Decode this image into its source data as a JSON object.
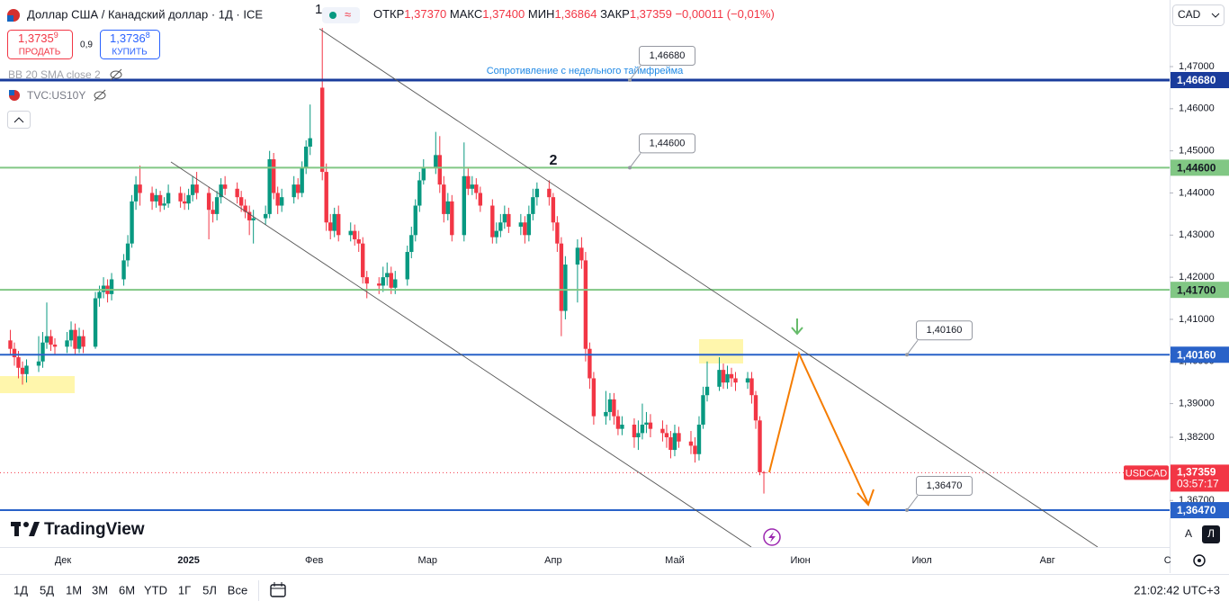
{
  "header": {
    "symbol": "Доллар США / Канадский доллар · 1Д · ICE",
    "open_label": "ОТКР",
    "open": "1,37370",
    "high_label": "МАКС",
    "high": "1,37400",
    "low_label": "МИН",
    "low": "1,36864",
    "close_label": "ЗАКР",
    "close": "1,37359",
    "change": "−0,00011 (−0,01%)"
  },
  "trade": {
    "sell_price": "1,3735",
    "sell_pip": "9",
    "sell": "ПРОДАТЬ",
    "spread": "0,9",
    "buy_price": "1,3736",
    "buy_pip": "8",
    "buy": "КУПИТЬ"
  },
  "indicators": [
    "BB 20 SMA close 2",
    "TVC:US10Y"
  ],
  "currency": "CAD",
  "logo": "TradingView",
  "toolbar": {
    "ranges": [
      "1Д",
      "5Д",
      "1М",
      "3М",
      "6М",
      "YTD",
      "1Г",
      "5Л",
      "Все"
    ],
    "clock": "21:02:42 UTC+3",
    "auto": "A",
    "log": "Л"
  },
  "chart_data": {
    "type": "candlestick",
    "symbol_tag": "USDCAD",
    "last_price": {
      "value": 1.37359,
      "label": "1,37359"
    },
    "countdown": "03:57:17",
    "annotations": [
      "1",
      "2",
      "Сопротивление с недельного таймфрейма"
    ],
    "grid": false,
    "up_color": "#089981",
    "down_color": "#f23645",
    "xlim": [
      -15.55,
      273.15
    ],
    "xticks": [
      {
        "value": 0,
        "label": "Дек"
      },
      {
        "value": 31,
        "label": "2025"
      },
      {
        "value": 62,
        "label": "Фев"
      },
      {
        "value": 90,
        "label": "Мар"
      },
      {
        "value": 121,
        "label": "Апр"
      },
      {
        "value": 151,
        "label": "Май"
      },
      {
        "value": 182,
        "label": "Июн"
      },
      {
        "value": 212,
        "label": "Июл"
      },
      {
        "value": 243,
        "label": "Авг"
      },
      {
        "value": 274,
        "label": "Сен"
      }
    ],
    "ylim": [
      1.35595,
      1.48581
    ],
    "yticks": [
      {
        "value": 1.47,
        "label": "1,47000"
      },
      {
        "value": 1.46,
        "label": "1,46000"
      },
      {
        "value": 1.45,
        "label": "1,45000"
      },
      {
        "value": 1.44,
        "label": "1,44000"
      },
      {
        "value": 1.43,
        "label": "1,43000"
      },
      {
        "value": 1.42,
        "label": "1,42000"
      },
      {
        "value": 1.41,
        "label": "1,41000"
      },
      {
        "value": 1.4,
        "label": "1,40000"
      },
      {
        "value": 1.39,
        "label": "1,39000"
      },
      {
        "value": 1.382,
        "label": "1,38200"
      },
      {
        "value": 1.367,
        "label": "1,36700"
      }
    ],
    "levels": [
      {
        "value": 1.4668,
        "label": "1,46680",
        "color": "#1a3c9c",
        "text_color": "#ffffff",
        "line_width": 3
      },
      {
        "value": 1.446,
        "label": "1,44600",
        "color": "#81c784",
        "text_color": "#131722",
        "line_width": 2
      },
      {
        "value": 1.417,
        "label": "1,41700",
        "color": "#81c784",
        "text_color": "#131722",
        "line_width": 2
      },
      {
        "value": 1.4016,
        "label": "1,40160",
        "color": "#2962c8",
        "text_color": "#ffffff",
        "line_width": 2
      },
      {
        "value": 1.3647,
        "label": "1,36470",
        "color": "#2962c8",
        "text_color": "#ffffff",
        "line_width": 2
      }
    ],
    "candles": {
      "x": [
        -13,
        -12,
        -11,
        -10,
        -9,
        -6,
        -5,
        -4,
        -3,
        -2,
        1,
        2,
        3,
        4,
        5,
        8,
        9,
        10,
        11,
        12,
        15,
        16,
        17,
        18,
        19,
        22,
        23,
        24,
        25,
        26,
        29,
        30,
        31,
        32,
        33,
        36,
        37,
        38,
        39,
        40,
        43,
        44,
        45,
        46,
        47,
        50,
        51,
        52,
        53,
        54,
        57,
        58,
        59,
        60,
        61,
        64,
        65,
        66,
        67,
        68,
        71,
        72,
        73,
        74,
        75,
        78,
        79,
        80,
        81,
        82,
        85,
        86,
        87,
        88,
        89,
        92,
        93,
        94,
        95,
        96,
        99,
        100,
        101,
        102,
        103,
        106,
        107,
        108,
        109,
        110,
        113,
        114,
        115,
        116,
        117,
        120,
        121,
        122,
        123,
        124,
        127,
        128,
        129,
        130,
        131,
        134,
        135,
        136,
        137,
        138,
        141,
        142,
        143,
        144,
        145,
        148,
        149,
        150,
        151,
        152,
        155,
        156,
        157,
        158,
        159,
        162,
        163,
        164,
        165,
        166,
        169,
        170,
        171,
        172,
        173
      ],
      "open": [
        1.405,
        1.403,
        1.401,
        1.3985,
        1.397,
        1.399,
        1.4,
        1.4045,
        1.406,
        1.404,
        1.4035,
        1.405,
        1.4075,
        1.403,
        1.406,
        1.4035,
        1.415,
        1.4165,
        1.418,
        1.416,
        1.4195,
        1.424,
        1.428,
        1.438,
        1.442,
        1.44,
        1.438,
        1.4395,
        1.437,
        1.4375,
        1.44,
        1.438,
        1.4375,
        1.4395,
        1.442,
        1.44,
        1.436,
        1.435,
        1.439,
        1.442,
        1.441,
        1.439,
        1.437,
        1.4355,
        1.4335,
        1.434,
        1.435,
        1.448,
        1.44,
        1.437,
        1.439,
        1.442,
        1.44,
        1.446,
        1.451,
        1.465,
        1.445,
        1.433,
        1.431,
        1.435,
        1.43,
        1.431,
        1.429,
        1.428,
        1.42,
        1.4185,
        1.418,
        1.42,
        1.421,
        1.4175,
        1.4195,
        1.426,
        1.43,
        1.437,
        1.443,
        1.446,
        1.449,
        1.442,
        1.435,
        1.438,
        1.43,
        1.444,
        1.441,
        1.442,
        1.44,
        1.437,
        1.4295,
        1.431,
        1.433,
        1.435,
        1.432,
        1.433,
        1.43,
        1.435,
        1.439,
        1.441,
        1.439,
        1.433,
        1.428,
        1.412,
        1.423,
        1.427,
        1.424,
        1.403,
        1.396,
        1.387,
        1.388,
        1.391,
        1.387,
        1.384,
        1.385,
        1.382,
        1.383,
        1.385,
        1.3855,
        1.384,
        1.383,
        1.382,
        1.379,
        1.383,
        1.381,
        1.38,
        1.378,
        1.385,
        1.392,
        1.394,
        1.398,
        1.395,
        1.397,
        1.396,
        1.395,
        1.396,
        1.392,
        1.386,
        1.3737
      ],
      "high": [
        1.4075,
        1.4045,
        1.4025,
        1.4,
        1.4005,
        1.406,
        1.407,
        1.414,
        1.4075,
        1.4055,
        1.407,
        1.4095,
        1.409,
        1.408,
        1.4075,
        1.4165,
        1.418,
        1.42,
        1.4195,
        1.421,
        1.4255,
        1.43,
        1.4395,
        1.444,
        1.4465,
        1.4415,
        1.441,
        1.4405,
        1.439,
        1.442,
        1.4415,
        1.44,
        1.441,
        1.444,
        1.445,
        1.4415,
        1.438,
        1.4405,
        1.4435,
        1.444,
        1.4425,
        1.4405,
        1.4385,
        1.437,
        1.436,
        1.437,
        1.45,
        1.4495,
        1.4415,
        1.441,
        1.444,
        1.4435,
        1.4475,
        1.4525,
        1.461,
        1.4792,
        1.447,
        1.435,
        1.4365,
        1.437,
        1.433,
        1.4325,
        1.431,
        1.4295,
        1.4215,
        1.42,
        1.4225,
        1.4235,
        1.4225,
        1.4215,
        1.4275,
        1.432,
        1.4385,
        1.445,
        1.448,
        1.4545,
        1.4535,
        1.444,
        1.44,
        1.4395,
        1.452,
        1.446,
        1.444,
        1.4435,
        1.4415,
        1.4385,
        1.433,
        1.435,
        1.437,
        1.4365,
        1.435,
        1.4345,
        1.437,
        1.441,
        1.4425,
        1.443,
        1.44,
        1.4345,
        1.4295,
        1.425,
        1.429,
        1.4295,
        1.426,
        1.4045,
        1.3975,
        1.393,
        1.3925,
        1.3925,
        1.3885,
        1.387,
        1.3865,
        1.386,
        1.39,
        1.388,
        1.3875,
        1.386,
        1.385,
        1.3835,
        1.385,
        1.3845,
        1.3835,
        1.382,
        1.387,
        1.394,
        1.4,
        1.401,
        1.3995,
        1.399,
        1.3985,
        1.3975,
        1.3975,
        1.3975,
        1.393,
        1.387,
        1.374
      ],
      "low": [
        1.4015,
        1.399,
        1.396,
        1.3945,
        1.395,
        1.3975,
        1.3985,
        1.403,
        1.4025,
        1.4015,
        1.402,
        1.4035,
        1.4015,
        1.402,
        1.402,
        1.403,
        1.413,
        1.415,
        1.414,
        1.4145,
        1.418,
        1.4225,
        1.427,
        1.436,
        1.437,
        1.436,
        1.4365,
        1.4355,
        1.436,
        1.4365,
        1.4365,
        1.436,
        1.436,
        1.438,
        1.4385,
        1.429,
        1.433,
        1.4335,
        1.4375,
        1.4395,
        1.4375,
        1.4355,
        1.434,
        1.43,
        1.428,
        1.4325,
        1.434,
        1.4385,
        1.435,
        1.4355,
        1.4375,
        1.4385,
        1.439,
        1.4445,
        1.449,
        1.443,
        1.431,
        1.429,
        1.4295,
        1.4285,
        1.4285,
        1.4275,
        1.426,
        1.4185,
        1.415,
        1.416,
        1.4165,
        1.418,
        1.416,
        1.416,
        1.418,
        1.4245,
        1.4285,
        1.4355,
        1.442,
        1.4445,
        1.44,
        1.433,
        1.4335,
        1.4285,
        1.4285,
        1.4395,
        1.4395,
        1.4385,
        1.4355,
        1.428,
        1.428,
        1.4295,
        1.4315,
        1.4305,
        1.43,
        1.428,
        1.4285,
        1.4335,
        1.437,
        1.437,
        1.431,
        1.426,
        1.406,
        1.41,
        1.414,
        1.422,
        1.4,
        1.3935,
        1.385,
        1.385,
        1.386,
        1.385,
        1.3825,
        1.3825,
        1.3795,
        1.379,
        1.3815,
        1.383,
        1.382,
        1.381,
        1.3795,
        1.377,
        1.3775,
        1.3795,
        1.378,
        1.376,
        1.3765,
        1.384,
        1.3905,
        1.393,
        1.3935,
        1.3935,
        1.394,
        1.393,
        1.3935,
        1.39,
        1.384,
        1.373,
        1.36864
      ],
      "close": [
        1.403,
        1.401,
        1.3985,
        1.397,
        1.399,
        1.4,
        1.4045,
        1.406,
        1.404,
        1.4035,
        1.405,
        1.4075,
        1.403,
        1.406,
        1.4035,
        1.415,
        1.4165,
        1.418,
        1.416,
        1.4195,
        1.424,
        1.428,
        1.438,
        1.442,
        1.44,
        1.438,
        1.4395,
        1.437,
        1.4375,
        1.44,
        1.438,
        1.4375,
        1.4395,
        1.442,
        1.44,
        1.436,
        1.435,
        1.439,
        1.442,
        1.441,
        1.439,
        1.437,
        1.4355,
        1.4335,
        1.434,
        1.435,
        1.448,
        1.44,
        1.437,
        1.439,
        1.442,
        1.44,
        1.446,
        1.451,
        1.453,
        1.445,
        1.433,
        1.431,
        1.435,
        1.43,
        1.431,
        1.429,
        1.428,
        1.42,
        1.4185,
        1.418,
        1.42,
        1.421,
        1.4175,
        1.4195,
        1.426,
        1.43,
        1.437,
        1.443,
        1.446,
        1.449,
        1.442,
        1.435,
        1.438,
        1.43,
        1.444,
        1.441,
        1.442,
        1.44,
        1.437,
        1.4295,
        1.431,
        1.433,
        1.435,
        1.432,
        1.433,
        1.43,
        1.435,
        1.439,
        1.441,
        1.439,
        1.433,
        1.428,
        1.412,
        1.423,
        1.427,
        1.424,
        1.403,
        1.396,
        1.387,
        1.388,
        1.391,
        1.387,
        1.384,
        1.385,
        1.382,
        1.383,
        1.385,
        1.3855,
        1.384,
        1.383,
        1.382,
        1.379,
        1.383,
        1.381,
        1.38,
        1.378,
        1.385,
        1.392,
        1.394,
        1.398,
        1.395,
        1.397,
        1.396,
        1.395,
        1.396,
        1.392,
        1.386,
        1.3737,
        1.37359
      ]
    }
  }
}
